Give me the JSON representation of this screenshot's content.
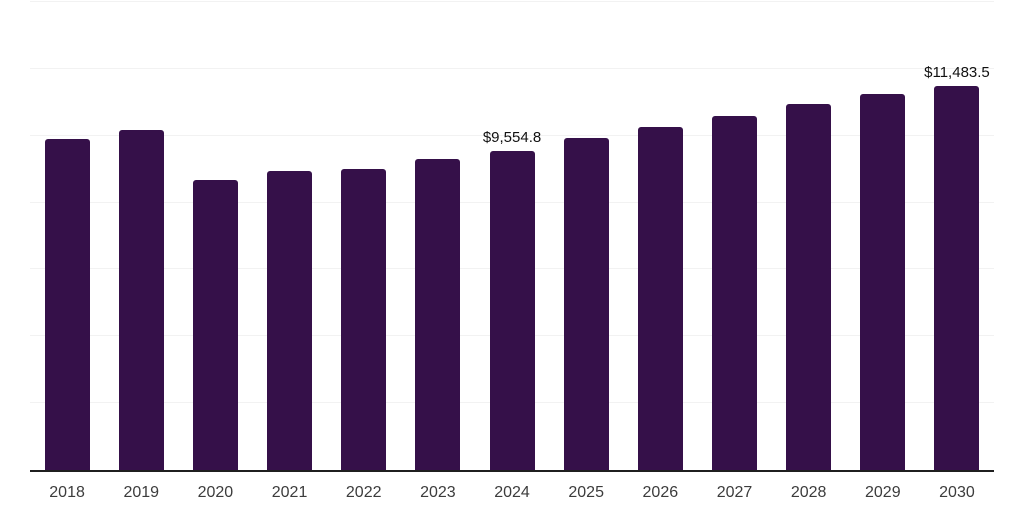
{
  "chart_data": {
    "type": "bar",
    "title": "",
    "xlabel": "",
    "ylabel": "",
    "categories": [
      "2018",
      "2019",
      "2020",
      "2021",
      "2022",
      "2023",
      "2024",
      "2025",
      "2026",
      "2027",
      "2028",
      "2029",
      "2030"
    ],
    "values": [
      9900,
      10170,
      8680,
      8930,
      9000,
      9290,
      9554.8,
      9940,
      10270,
      10600,
      10950,
      11240,
      11483.5
    ],
    "data_labels": [
      {
        "category": "2024",
        "text": "$9,554.8"
      },
      {
        "category": "2030",
        "text": "$11,483.5"
      }
    ],
    "ylim": [
      0,
      14000
    ],
    "gridline_step": 2000,
    "grid": true,
    "legend": false,
    "bar_color": "#351049",
    "axis_color": "#1f1f1f",
    "gridline_color": "#f2f2f2",
    "data_label_color": "#111111",
    "tick_label_color": "#3c3c3c",
    "background_color": "#ffffff"
  }
}
